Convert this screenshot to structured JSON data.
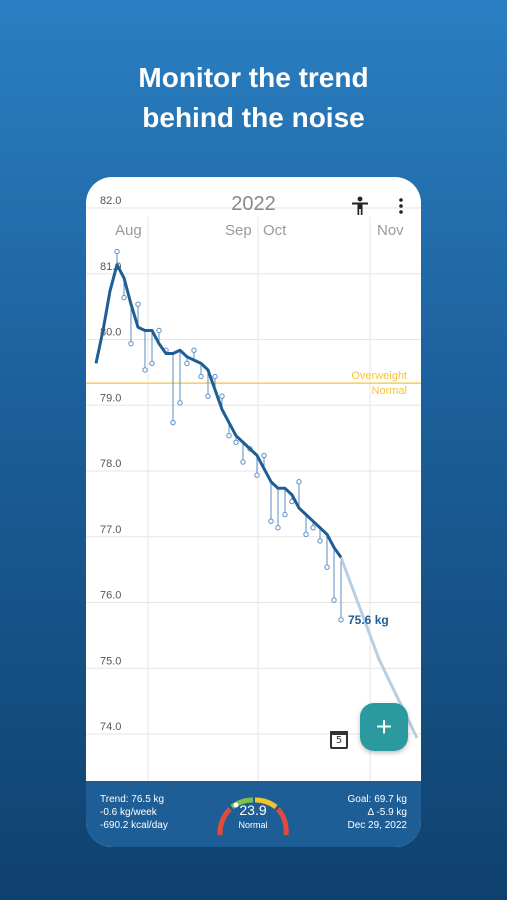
{
  "headline": {
    "line1": "Monitor the trend",
    "line2": "behind the noise"
  },
  "app": {
    "year": "2022",
    "months": [
      "Aug",
      "Sep",
      "Oct",
      "Nov"
    ],
    "icons": {
      "figure": "person-icon",
      "menu": "more-vert-icon",
      "add": "plus-icon",
      "calendar": "calendar-icon"
    },
    "calendar_day": "5",
    "fab_label": "+"
  },
  "chart_data": {
    "type": "line",
    "ylim": [
      73.5,
      82.2
    ],
    "yticks": [
      "82.0",
      "81.0",
      "80.0",
      "79.0",
      "78.0",
      "77.0",
      "76.0",
      "75.0",
      "74.0"
    ],
    "ytick_values": [
      82,
      81,
      80,
      79,
      78,
      77,
      76,
      75,
      74
    ],
    "threshold": {
      "value": 79.2,
      "above_label": "Overweight",
      "below_label": "Normal",
      "color": "#f5c342"
    },
    "trend": [
      79.5,
      80.0,
      80.6,
      81.0,
      80.8,
      80.4,
      80.05,
      80.0,
      80.0,
      79.8,
      79.65,
      79.65,
      79.7,
      79.6,
      79.55,
      79.5,
      79.4,
      79.1,
      78.8,
      78.6,
      78.4,
      78.3,
      78.2,
      78.1,
      77.9,
      77.7,
      77.6,
      77.6,
      77.5,
      77.3,
      77.2,
      77.1,
      77.0,
      76.9,
      76.7,
      76.55
    ],
    "measurements": [
      null,
      null,
      null,
      81.2,
      80.5,
      79.8,
      80.4,
      79.4,
      79.5,
      80.0,
      79.7,
      78.6,
      78.9,
      79.5,
      79.7,
      79.3,
      79.0,
      79.3,
      79.0,
      78.4,
      78.3,
      78.0,
      78.2,
      77.8,
      78.1,
      77.1,
      77.0,
      77.2,
      77.4,
      77.7,
      76.9,
      77.0,
      76.8,
      76.4,
      75.9,
      75.6
    ],
    "projection": [
      76.55,
      75.0,
      73.8
    ],
    "last_value_label": "75.6 kg",
    "colors": {
      "trend": "#1f5e95",
      "measurement": "#5b8fc4",
      "projection": "#b7cfe3",
      "grid": "#e6e6e6"
    }
  },
  "footer": {
    "trend": "Trend: 76.5 kg",
    "weekly": "-0.6 kg/week",
    "daily": "-690.2 kcal/day",
    "bmi_value": "23.9",
    "bmi_category": "Normal",
    "goal": "Goal: 69.7 kg",
    "delta": "Δ -5.9 kg",
    "date": "Dec 29, 2022"
  }
}
